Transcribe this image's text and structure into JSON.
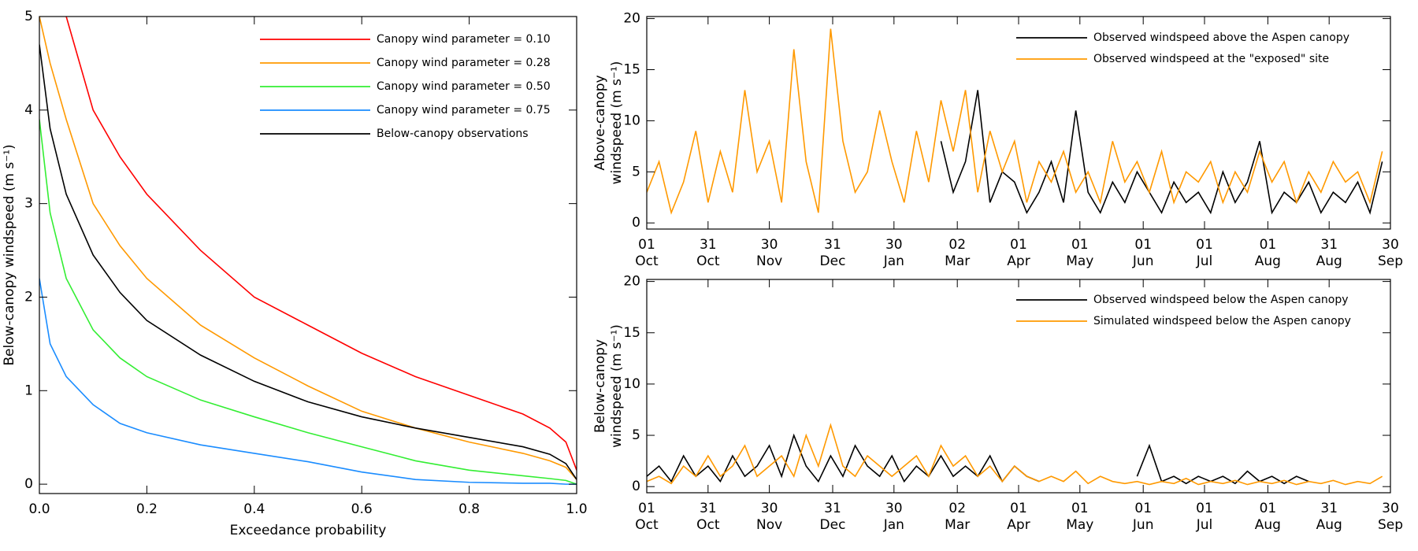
{
  "chart_data": [
    {
      "type": "line",
      "ylabel": [
        "Below-canopy windspeed (m s⁻¹)"
      ],
      "xlabel": "Exceedance probability",
      "x": [
        0,
        0.02,
        0.05,
        0.1,
        0.15,
        0.2,
        0.3,
        0.4,
        0.5,
        0.6,
        0.7,
        0.8,
        0.9,
        0.95,
        0.98,
        1.0
      ],
      "xlim": [
        0,
        1
      ],
      "ylim": [
        -0.1,
        5
      ],
      "xticks": [
        {
          "value": 0,
          "label": "0.0"
        },
        0.2,
        0.4,
        0.6,
        0.8,
        {
          "value": 1,
          "label": "1.0"
        }
      ],
      "yticks": [
        0,
        1,
        2,
        3,
        4,
        5
      ],
      "legend": "upper right",
      "series": [
        {
          "name": "Canopy wind parameter = 0.10",
          "color": "#ff0000",
          "values": [
            null,
            null,
            5.0,
            4.0,
            3.5,
            3.1,
            2.5,
            2.0,
            1.7,
            1.4,
            1.15,
            0.95,
            0.75,
            0.6,
            0.45,
            0.15
          ]
        },
        {
          "name": "Canopy wind parameter = 0.28",
          "color": "#ff9900",
          "values": [
            5.0,
            4.5,
            3.9,
            3.0,
            2.55,
            2.2,
            1.7,
            1.35,
            1.05,
            0.78,
            0.6,
            0.45,
            0.33,
            0.25,
            0.18,
            0.05
          ]
        },
        {
          "name": "Canopy wind parameter = 0.50",
          "color": "#33ee33",
          "values": [
            3.9,
            2.9,
            2.2,
            1.65,
            1.35,
            1.15,
            0.9,
            0.72,
            0.55,
            0.4,
            0.25,
            0.15,
            0.09,
            0.06,
            0.04,
            0
          ]
        },
        {
          "name": "Canopy wind parameter = 0.75",
          "color": "#1a8cff",
          "values": [
            2.2,
            1.5,
            1.15,
            0.85,
            0.65,
            0.55,
            0.42,
            0.33,
            0.24,
            0.13,
            0.05,
            0.02,
            0.01,
            0.01,
            0,
            0
          ]
        },
        {
          "name": "Below-canopy observations",
          "color": "#000000",
          "values": [
            4.7,
            3.8,
            3.1,
            2.45,
            2.05,
            1.75,
            1.38,
            1.1,
            0.88,
            0.72,
            0.6,
            0.5,
            0.4,
            0.32,
            0.22,
            0.05
          ]
        }
      ]
    },
    {
      "type": "line",
      "ylabel": [
        "Above-canopy",
        "windspeed (m s⁻¹)"
      ],
      "x": [
        0,
        6,
        12,
        18,
        24,
        30,
        36,
        42,
        48,
        54,
        60,
        66,
        72,
        78,
        84,
        90,
        96,
        102,
        108,
        114,
        120,
        126,
        132,
        138,
        144,
        150,
        156,
        162,
        168,
        174,
        180,
        186,
        192,
        198,
        204,
        210,
        216,
        222,
        228,
        234,
        240,
        246,
        252,
        258,
        264,
        270,
        276,
        282,
        288,
        294,
        300,
        306,
        312,
        318,
        324,
        330,
        336,
        342,
        348,
        354,
        360
      ],
      "xlim": [
        0,
        364
      ],
      "ylim": [
        -0.6,
        20.2
      ],
      "xticks": [
        {
          "value": 0,
          "label": [
            "01",
            "Oct"
          ]
        },
        {
          "value": 30,
          "label": [
            "31",
            "Oct"
          ]
        },
        {
          "value": 60,
          "label": [
            "30",
            "Nov"
          ]
        },
        {
          "value": 91,
          "label": [
            "31",
            "Dec"
          ]
        },
        {
          "value": 121,
          "label": [
            "30",
            "Jan"
          ]
        },
        {
          "value": 152,
          "label": [
            "02",
            "Mar"
          ]
        },
        {
          "value": 182,
          "label": [
            "01",
            "Apr"
          ]
        },
        {
          "value": 212,
          "label": [
            "01",
            "May"
          ]
        },
        {
          "value": 243,
          "label": [
            "01",
            "Jun"
          ]
        },
        {
          "value": 273,
          "label": [
            "01",
            "Jul"
          ]
        },
        {
          "value": 304,
          "label": [
            "01",
            "Aug"
          ]
        },
        {
          "value": 334,
          "label": [
            "31",
            "Aug"
          ]
        },
        {
          "value": 364,
          "label": [
            "30",
            "Sep"
          ]
        }
      ],
      "yticks": [
        0,
        5,
        10,
        15,
        20
      ],
      "legend": "upper right",
      "series": [
        {
          "name": "Observed windspeed above the Aspen canopy",
          "color": "#000000",
          "values": [
            null,
            null,
            null,
            null,
            null,
            null,
            null,
            null,
            null,
            null,
            null,
            null,
            null,
            null,
            null,
            null,
            null,
            null,
            null,
            null,
            null,
            null,
            null,
            null,
            8,
            3,
            6,
            13,
            2,
            5,
            4,
            1,
            3,
            6,
            2,
            11,
            3,
            1,
            4,
            2,
            5,
            3,
            1,
            4,
            2,
            3,
            1,
            5,
            2,
            4,
            8,
            1,
            3,
            2,
            4,
            1,
            3,
            2,
            4,
            1,
            6
          ]
        },
        {
          "name": "Observed windspeed at the \"exposed\" site",
          "color": "#ff9900",
          "values": [
            3,
            6,
            1,
            4,
            9,
            2,
            7,
            3,
            13,
            5,
            8,
            2,
            17,
            6,
            1,
            19,
            8,
            3,
            5,
            11,
            6,
            2,
            9,
            4,
            12,
            7,
            13,
            3,
            9,
            5,
            8,
            2,
            6,
            4,
            7,
            3,
            5,
            2,
            8,
            4,
            6,
            3,
            7,
            2,
            5,
            4,
            6,
            2,
            5,
            3,
            7,
            4,
            6,
            2,
            5,
            3,
            6,
            4,
            5,
            2,
            7
          ]
        }
      ]
    },
    {
      "type": "line",
      "ylabel": [
        "Below-canopy",
        "windspeed (m s⁻¹)"
      ],
      "x": [
        0,
        6,
        12,
        18,
        24,
        30,
        36,
        42,
        48,
        54,
        60,
        66,
        72,
        78,
        84,
        90,
        96,
        102,
        108,
        114,
        120,
        126,
        132,
        138,
        144,
        150,
        156,
        162,
        168,
        174,
        180,
        186,
        192,
        198,
        204,
        210,
        216,
        222,
        228,
        234,
        240,
        246,
        252,
        258,
        264,
        270,
        276,
        282,
        288,
        294,
        300,
        306,
        312,
        318,
        324,
        330,
        336,
        342,
        348,
        354,
        360
      ],
      "xlim": [
        0,
        364
      ],
      "ylim": [
        -0.6,
        20.2
      ],
      "xticks": [
        {
          "value": 0,
          "label": [
            "01",
            "Oct"
          ]
        },
        {
          "value": 30,
          "label": [
            "31",
            "Oct"
          ]
        },
        {
          "value": 60,
          "label": [
            "30",
            "Nov"
          ]
        },
        {
          "value": 91,
          "label": [
            "31",
            "Dec"
          ]
        },
        {
          "value": 121,
          "label": [
            "30",
            "Jan"
          ]
        },
        {
          "value": 152,
          "label": [
            "02",
            "Mar"
          ]
        },
        {
          "value": 182,
          "label": [
            "01",
            "Apr"
          ]
        },
        {
          "value": 212,
          "label": [
            "01",
            "May"
          ]
        },
        {
          "value": 243,
          "label": [
            "01",
            "Jun"
          ]
        },
        {
          "value": 273,
          "label": [
            "01",
            "Jul"
          ]
        },
        {
          "value": 304,
          "label": [
            "01",
            "Aug"
          ]
        },
        {
          "value": 334,
          "label": [
            "31",
            "Aug"
          ]
        },
        {
          "value": 364,
          "label": [
            "30",
            "Sep"
          ]
        }
      ],
      "yticks": [
        0,
        5,
        10,
        15,
        20
      ],
      "legend": "upper right",
      "series": [
        {
          "name": "Observed windspeed below the Aspen canopy",
          "color": "#000000",
          "values": [
            1,
            2,
            0.5,
            3,
            1,
            2,
            0.5,
            3,
            1,
            2,
            4,
            1,
            5,
            2,
            0.5,
            3,
            1,
            4,
            2,
            1,
            3,
            0.5,
            2,
            1,
            3,
            1,
            2,
            1,
            3,
            0.5,
            2,
            1,
            0.5,
            null,
            null,
            null,
            null,
            null,
            null,
            null,
            1,
            4,
            0.5,
            1,
            0.3,
            1,
            0.5,
            1,
            0.3,
            1.5,
            0.5,
            1,
            0.3,
            1,
            0.5,
            null,
            null,
            null,
            null,
            null,
            null
          ]
        },
        {
          "name": "Simulated windspeed below the Aspen canopy",
          "color": "#ff9900",
          "values": [
            0.5,
            1,
            0.3,
            2,
            1,
            3,
            1,
            2,
            4,
            1,
            2,
            3,
            1,
            5,
            2,
            6,
            2,
            1,
            3,
            2,
            1,
            2,
            3,
            1,
            4,
            2,
            3,
            1,
            2,
            0.5,
            2,
            1,
            0.5,
            1,
            0.5,
            1.5,
            0.3,
            1,
            0.5,
            0.3,
            0.5,
            0.2,
            0.5,
            0.3,
            0.8,
            0.2,
            0.5,
            0.3,
            0.6,
            0.2,
            0.5,
            0.3,
            0.6,
            0.2,
            0.5,
            0.3,
            0.6,
            0.2,
            0.5,
            0.3,
            1
          ]
        }
      ]
    }
  ]
}
